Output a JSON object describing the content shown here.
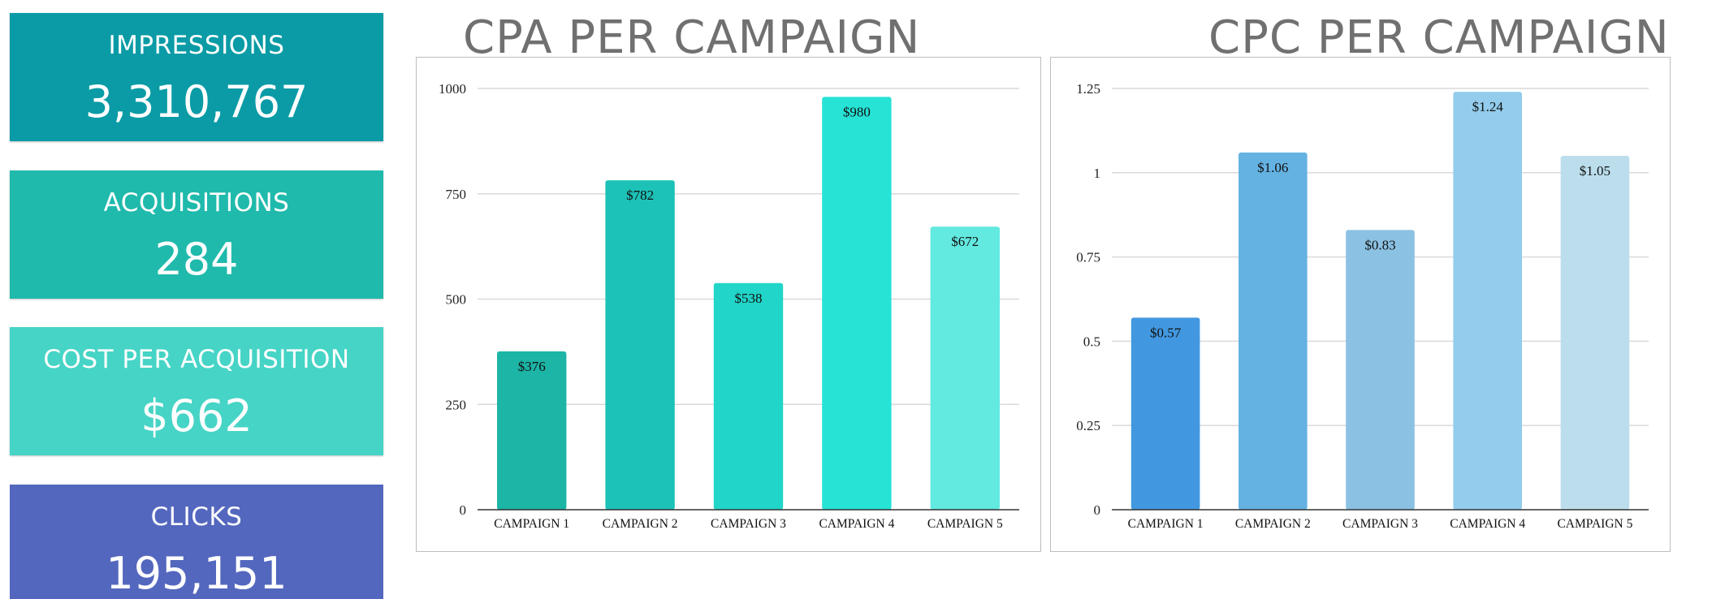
{
  "kpis": [
    {
      "label": "IMPRESSIONS",
      "value": "3,310,767",
      "color": "#0A9BA6"
    },
    {
      "label": "ACQUISITIONS",
      "value": "284",
      "color": "#1FBAAC"
    },
    {
      "label": "COST PER ACQUISITION",
      "value": "$662",
      "color": "#46D4C6"
    },
    {
      "label": "CLICKS",
      "value": "195,151",
      "color": "#5367BE"
    }
  ],
  "chart_data": [
    {
      "type": "bar",
      "title": "CPA PER CAMPAIGN",
      "categories": [
        "CAMPAIGN 1",
        "CAMPAIGN 2",
        "CAMPAIGN 3",
        "CAMPAIGN 4",
        "CAMPAIGN 5"
      ],
      "values": [
        376,
        782,
        538,
        980,
        672
      ],
      "data_labels": [
        "$376",
        "$782",
        "$538",
        "$980",
        "$672"
      ],
      "colors": [
        "#1CB5A6",
        "#1DC2B7",
        "#21D5C8",
        "#26E3D6",
        "#62E9E0"
      ],
      "yticks": [
        "0",
        "250",
        "500",
        "750",
        "1000"
      ],
      "ylim": [
        0,
        1000
      ],
      "grid": true,
      "legend": "none"
    },
    {
      "type": "bar",
      "title": "CPC PER CAMPAIGN",
      "categories": [
        "CAMPAIGN 1",
        "CAMPAIGN 2",
        "CAMPAIGN 3",
        "CAMPAIGN 4",
        "CAMPAIGN 5"
      ],
      "values": [
        0.57,
        1.06,
        0.83,
        1.24,
        1.05
      ],
      "data_labels": [
        "$0.57",
        "$1.06",
        "$0.83",
        "$1.24",
        "$1.05"
      ],
      "colors": [
        "#4298E0",
        "#64B2E2",
        "#8BC1E2",
        "#93CCEC",
        "#BCDEEC"
      ],
      "yticks": [
        "0",
        "0.25",
        "0.5",
        "0.75",
        "1",
        "1.25"
      ],
      "ylim": [
        0,
        1.25
      ],
      "grid": true,
      "legend": "none"
    }
  ]
}
